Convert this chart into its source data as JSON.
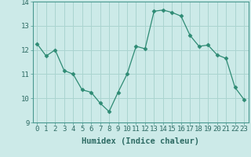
{
  "x": [
    0,
    1,
    2,
    3,
    4,
    5,
    6,
    7,
    8,
    9,
    10,
    11,
    12,
    13,
    14,
    15,
    16,
    17,
    18,
    19,
    20,
    21,
    22,
    23
  ],
  "y": [
    12.25,
    11.75,
    12.0,
    11.15,
    11.0,
    10.35,
    10.25,
    9.8,
    9.45,
    10.25,
    11.0,
    12.15,
    12.05,
    13.6,
    13.65,
    13.55,
    13.4,
    12.6,
    12.15,
    12.2,
    11.8,
    11.65,
    10.45,
    9.95
  ],
  "line_color": "#2e8b74",
  "marker": "D",
  "marker_size": 2.5,
  "bg_color": "#cceae8",
  "grid_color": "#aad4d0",
  "xlabel": "Humidex (Indice chaleur)",
  "ylim": [
    9,
    14
  ],
  "xlim": [
    -0.5,
    23.5
  ],
  "yticks": [
    9,
    10,
    11,
    12,
    13,
    14
  ],
  "xticks": [
    0,
    1,
    2,
    3,
    4,
    5,
    6,
    7,
    8,
    9,
    10,
    11,
    12,
    13,
    14,
    15,
    16,
    17,
    18,
    19,
    20,
    21,
    22,
    23
  ],
  "tick_fontsize": 6.5,
  "xlabel_fontsize": 7.5,
  "tick_color": "#2e6b64",
  "spine_color": "#4a9990"
}
